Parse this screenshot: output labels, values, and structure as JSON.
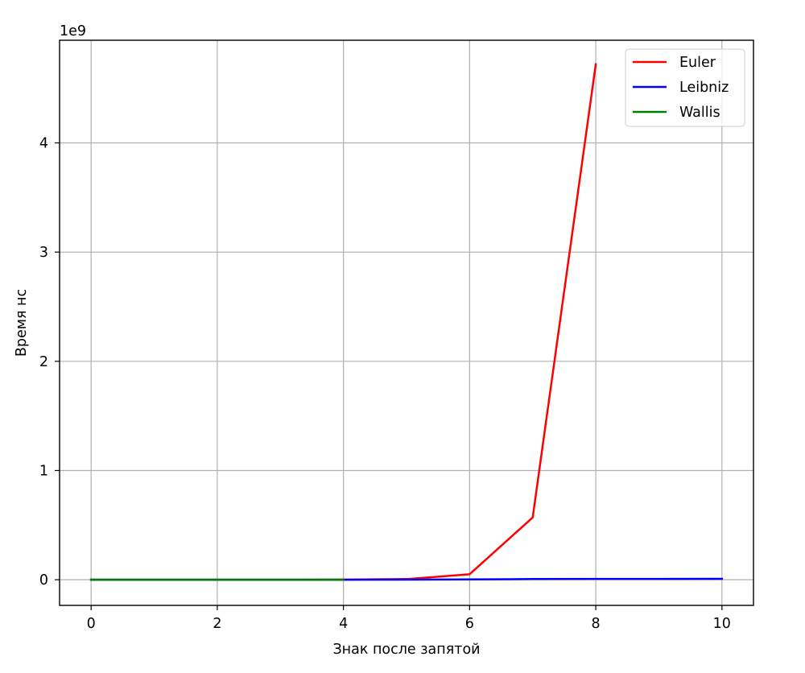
{
  "chart_data": {
    "type": "line",
    "title": "",
    "xlabel": "Знак после запятой",
    "ylabel": "Время нс",
    "y_offset_text": "1e9",
    "xlim": [
      -0.5,
      10.5
    ],
    "ylim": [
      -0.235,
      4.94
    ],
    "y_scale_factor": 1000000000,
    "x_ticks": [
      0,
      2,
      4,
      6,
      8,
      10
    ],
    "x_tick_labels": [
      "0",
      "2",
      "4",
      "6",
      "8",
      "10"
    ],
    "y_ticks": [
      0,
      1,
      2,
      3,
      4
    ],
    "y_tick_labels": [
      "0",
      "1",
      "2",
      "3",
      "4"
    ],
    "grid": true,
    "legend_position": "top-right",
    "series": [
      {
        "name": "Euler",
        "color": "#ff0000",
        "x": [
          0,
          1,
          2,
          3,
          4,
          5,
          6,
          7,
          8
        ],
        "y": [
          0,
          0,
          0,
          0,
          0.001,
          0.006,
          0.05,
          0.57,
          4.72
        ]
      },
      {
        "name": "Leibniz",
        "color": "#0000ff",
        "x": [
          0,
          1,
          2,
          3,
          4,
          5,
          6,
          7,
          8,
          9,
          10
        ],
        "y": [
          0,
          0,
          0,
          0,
          0,
          0.001,
          0.003,
          0.006,
          0.007,
          0.007,
          0.008
        ]
      },
      {
        "name": "Wallis",
        "color": "#008000",
        "x": [
          0,
          1,
          2,
          3,
          4
        ],
        "y": [
          0,
          0,
          0,
          0,
          0
        ]
      }
    ]
  }
}
